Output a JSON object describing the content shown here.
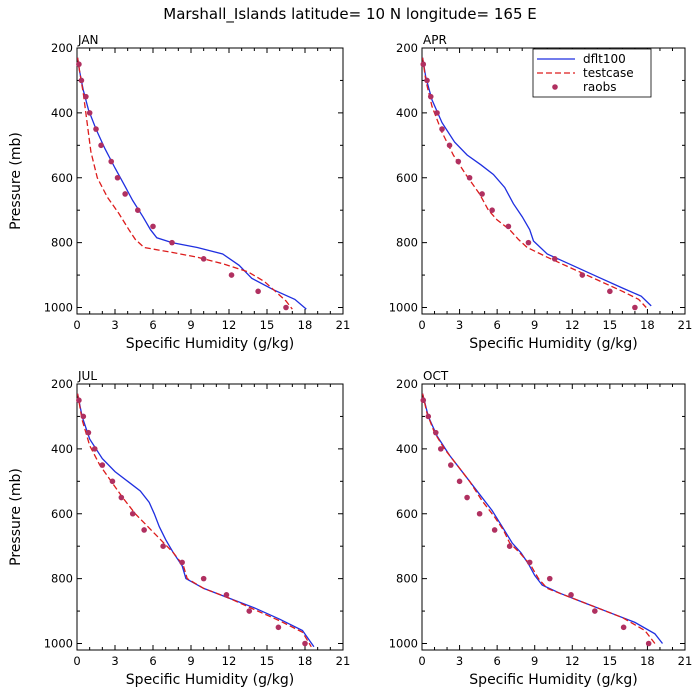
{
  "figure": {
    "title": "Marshall_Islands  latitude= 10 N longitude= 165 E"
  },
  "colors": {
    "dflt100": "#1f2fe0",
    "testcase": "#dd1c1c",
    "raobs": "#b03060",
    "axis": "#000000"
  },
  "chart_data": [
    {
      "type": "line",
      "panel_label": "JAN",
      "xlabel": "Specific Humidity (g/kg)",
      "ylabel": "Pressure (mb)",
      "xlim": [
        0,
        21
      ],
      "ylim": [
        200,
        1020
      ],
      "y_inverted": true,
      "xticks": [
        0,
        3,
        6,
        9,
        12,
        15,
        18,
        21
      ],
      "yticks": [
        200,
        400,
        600,
        800,
        1000
      ],
      "legend": null,
      "series": [
        {
          "name": "dflt100",
          "style": "solid",
          "points": [
            [
              0.05,
              230
            ],
            [
              0.2,
              270
            ],
            [
              0.5,
              330
            ],
            [
              0.9,
              390
            ],
            [
              1.5,
              450
            ],
            [
              2.2,
              510
            ],
            [
              3.0,
              570
            ],
            [
              3.7,
              620
            ],
            [
              4.4,
              670
            ],
            [
              5.2,
              720
            ],
            [
              5.8,
              760
            ],
            [
              6.3,
              785
            ],
            [
              7.5,
              800
            ],
            [
              9.5,
              815
            ],
            [
              11.5,
              835
            ],
            [
              12.8,
              870
            ],
            [
              13.8,
              910
            ],
            [
              15.5,
              945
            ],
            [
              17.2,
              975
            ],
            [
              18.1,
              1005
            ]
          ]
        },
        {
          "name": "testcase",
          "style": "dashed",
          "points": [
            [
              0.05,
              230
            ],
            [
              0.2,
              270
            ],
            [
              0.5,
              340
            ],
            [
              0.8,
              430
            ],
            [
              1.1,
              520
            ],
            [
              1.6,
              600
            ],
            [
              2.4,
              660
            ],
            [
              3.3,
              710
            ],
            [
              4.1,
              760
            ],
            [
              4.6,
              790
            ],
            [
              5.3,
              815
            ],
            [
              7.5,
              830
            ],
            [
              9.5,
              845
            ],
            [
              11.5,
              865
            ],
            [
              13.5,
              890
            ],
            [
              14.8,
              920
            ],
            [
              15.8,
              955
            ],
            [
              16.5,
              980
            ],
            [
              17.0,
              1005
            ]
          ]
        },
        {
          "name": "raobs",
          "style": "markers",
          "points": [
            [
              0.15,
              250
            ],
            [
              0.35,
              300
            ],
            [
              0.7,
              350
            ],
            [
              1.0,
              400
            ],
            [
              1.5,
              450
            ],
            [
              1.9,
              500
            ],
            [
              2.7,
              550
            ],
            [
              3.2,
              600
            ],
            [
              3.8,
              650
            ],
            [
              4.8,
              700
            ],
            [
              6.0,
              750
            ],
            [
              7.5,
              800
            ],
            [
              10.0,
              850
            ],
            [
              12.2,
              900
            ],
            [
              14.3,
              950
            ],
            [
              16.5,
              1000
            ]
          ]
        }
      ]
    },
    {
      "type": "line",
      "panel_label": "APR",
      "xlabel": "Specific Humidity (g/kg)",
      "ylabel": "",
      "xlim": [
        0,
        21
      ],
      "ylim": [
        200,
        1020
      ],
      "y_inverted": true,
      "xticks": [
        0,
        3,
        6,
        9,
        12,
        15,
        18,
        21
      ],
      "yticks": [
        200,
        400,
        600,
        800,
        1000
      ],
      "legend": "top-right",
      "series": [
        {
          "name": "dflt100",
          "style": "solid",
          "points": [
            [
              0.05,
              230
            ],
            [
              0.3,
              290
            ],
            [
              0.8,
              360
            ],
            [
              1.6,
              430
            ],
            [
              2.6,
              490
            ],
            [
              3.6,
              530
            ],
            [
              4.7,
              560
            ],
            [
              5.7,
              590
            ],
            [
              6.6,
              630
            ],
            [
              7.3,
              680
            ],
            [
              8.0,
              720
            ],
            [
              8.6,
              760
            ],
            [
              8.9,
              795
            ],
            [
              10.0,
              835
            ],
            [
              12.0,
              870
            ],
            [
              14.0,
              905
            ],
            [
              16.0,
              940
            ],
            [
              17.5,
              965
            ],
            [
              18.3,
              995
            ]
          ]
        },
        {
          "name": "testcase",
          "style": "dashed",
          "points": [
            [
              0.05,
              230
            ],
            [
              0.3,
              300
            ],
            [
              0.8,
              380
            ],
            [
              1.6,
              460
            ],
            [
              2.5,
              530
            ],
            [
              3.5,
              590
            ],
            [
              4.6,
              650
            ],
            [
              5.3,
              700
            ],
            [
              6.0,
              730
            ],
            [
              7.0,
              760
            ],
            [
              7.7,
              790
            ],
            [
              8.4,
              815
            ],
            [
              10.0,
              845
            ],
            [
              12.0,
              880
            ],
            [
              14.0,
              915
            ],
            [
              16.0,
              950
            ],
            [
              17.3,
              975
            ],
            [
              17.9,
              1000
            ]
          ]
        },
        {
          "name": "raobs",
          "style": "markers",
          "points": [
            [
              0.1,
              250
            ],
            [
              0.4,
              300
            ],
            [
              0.7,
              350
            ],
            [
              1.2,
              400
            ],
            [
              1.6,
              450
            ],
            [
              2.2,
              500
            ],
            [
              2.9,
              550
            ],
            [
              3.8,
              600
            ],
            [
              4.8,
              650
            ],
            [
              5.6,
              700
            ],
            [
              6.9,
              750
            ],
            [
              8.5,
              800
            ],
            [
              10.6,
              850
            ],
            [
              12.8,
              900
            ],
            [
              15.0,
              950
            ],
            [
              17.0,
              1000
            ]
          ]
        }
      ]
    },
    {
      "type": "line",
      "panel_label": "JUL",
      "xlabel": "Specific Humidity (g/kg)",
      "ylabel": "Pressure (mb)",
      "xlim": [
        0,
        21
      ],
      "ylim": [
        200,
        1020
      ],
      "y_inverted": true,
      "xticks": [
        0,
        3,
        6,
        9,
        12,
        15,
        18,
        21
      ],
      "yticks": [
        200,
        400,
        600,
        800,
        1000
      ],
      "legend": null,
      "series": [
        {
          "name": "dflt100",
          "style": "solid",
          "points": [
            [
              0.05,
              230
            ],
            [
              0.4,
              300
            ],
            [
              1.0,
              370
            ],
            [
              2.0,
              430
            ],
            [
              3.0,
              470
            ],
            [
              4.0,
              500
            ],
            [
              5.0,
              530
            ],
            [
              5.7,
              565
            ],
            [
              6.1,
              600
            ],
            [
              6.5,
              640
            ],
            [
              7.0,
              680
            ],
            [
              7.6,
              720
            ],
            [
              8.3,
              760
            ],
            [
              8.6,
              800
            ],
            [
              10.0,
              830
            ],
            [
              12.0,
              860
            ],
            [
              14.0,
              890
            ],
            [
              16.0,
              925
            ],
            [
              17.8,
              960
            ],
            [
              18.7,
              1010
            ]
          ]
        },
        {
          "name": "testcase",
          "style": "dashed",
          "points": [
            [
              0.05,
              230
            ],
            [
              0.4,
              310
            ],
            [
              1.0,
              390
            ],
            [
              1.8,
              450
            ],
            [
              2.7,
              500
            ],
            [
              3.6,
              550
            ],
            [
              4.6,
              600
            ],
            [
              5.6,
              640
            ],
            [
              6.6,
              680
            ],
            [
              7.6,
              720
            ],
            [
              8.4,
              760
            ],
            [
              8.7,
              800
            ],
            [
              10.0,
              830
            ],
            [
              12.0,
              860
            ],
            [
              14.0,
              895
            ],
            [
              16.0,
              930
            ],
            [
              17.8,
              965
            ],
            [
              18.5,
              1010
            ]
          ]
        },
        {
          "name": "raobs",
          "style": "markers",
          "points": [
            [
              0.15,
              250
            ],
            [
              0.5,
              300
            ],
            [
              0.9,
              350
            ],
            [
              1.4,
              400
            ],
            [
              2.0,
              450
            ],
            [
              2.8,
              500
            ],
            [
              3.5,
              550
            ],
            [
              4.4,
              600
            ],
            [
              5.3,
              650
            ],
            [
              6.8,
              700
            ],
            [
              8.3,
              750
            ],
            [
              10.0,
              800
            ],
            [
              11.8,
              850
            ],
            [
              13.6,
              900
            ],
            [
              15.9,
              950
            ],
            [
              18.0,
              1000
            ]
          ]
        }
      ]
    },
    {
      "type": "line",
      "panel_label": "OCT",
      "xlabel": "Specific Humidity (g/kg)",
      "ylabel": "",
      "xlim": [
        0,
        21
      ],
      "ylim": [
        200,
        1020
      ],
      "y_inverted": true,
      "xticks": [
        0,
        3,
        6,
        9,
        12,
        15,
        18,
        21
      ],
      "yticks": [
        200,
        400,
        600,
        800,
        1000
      ],
      "legend": null,
      "series": [
        {
          "name": "dflt100",
          "style": "solid",
          "points": [
            [
              0.05,
              230
            ],
            [
              0.5,
              300
            ],
            [
              1.2,
              360
            ],
            [
              2.2,
              420
            ],
            [
              3.4,
              480
            ],
            [
              4.6,
              540
            ],
            [
              5.6,
              590
            ],
            [
              6.4,
              640
            ],
            [
              7.2,
              690
            ],
            [
              7.9,
              720
            ],
            [
              8.5,
              755
            ],
            [
              9.0,
              790
            ],
            [
              9.6,
              820
            ],
            [
              11.0,
              845
            ],
            [
              13.0,
              875
            ],
            [
              15.0,
              905
            ],
            [
              17.0,
              935
            ],
            [
              18.6,
              970
            ],
            [
              19.2,
              1000
            ]
          ]
        },
        {
          "name": "testcase",
          "style": "dashed",
          "points": [
            [
              0.05,
              230
            ],
            [
              0.4,
              290
            ],
            [
              1.0,
              350
            ],
            [
              1.8,
              400
            ],
            [
              2.8,
              450
            ],
            [
              3.8,
              500
            ],
            [
              4.8,
              560
            ],
            [
              5.8,
              610
            ],
            [
              6.5,
              650
            ],
            [
              7.0,
              690
            ],
            [
              7.8,
              720
            ],
            [
              8.7,
              760
            ],
            [
              9.3,
              800
            ],
            [
              10.0,
              830
            ],
            [
              12.0,
              860
            ],
            [
              14.0,
              890
            ],
            [
              16.0,
              920
            ],
            [
              17.8,
              960
            ],
            [
              18.6,
              1000
            ]
          ]
        },
        {
          "name": "raobs",
          "style": "markers",
          "points": [
            [
              0.1,
              250
            ],
            [
              0.5,
              300
            ],
            [
              1.1,
              350
            ],
            [
              1.5,
              400
            ],
            [
              2.3,
              450
            ],
            [
              3.0,
              500
            ],
            [
              3.6,
              550
            ],
            [
              4.6,
              600
            ],
            [
              5.8,
              650
            ],
            [
              7.0,
              700
            ],
            [
              8.6,
              750
            ],
            [
              10.2,
              800
            ],
            [
              11.9,
              850
            ],
            [
              13.8,
              900
            ],
            [
              16.1,
              950
            ],
            [
              18.1,
              1000
            ]
          ]
        }
      ]
    }
  ]
}
